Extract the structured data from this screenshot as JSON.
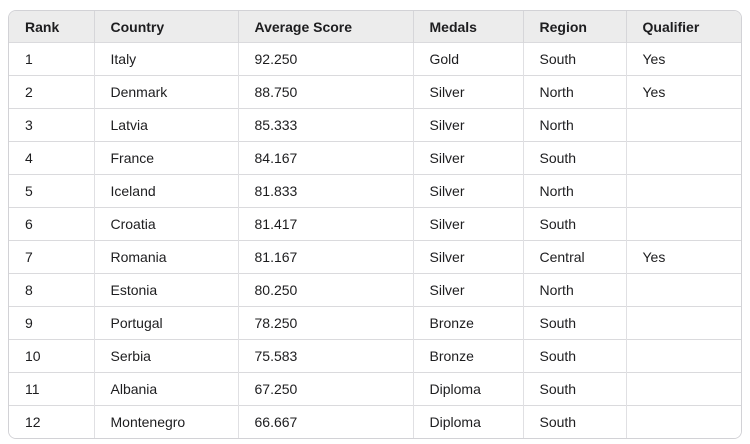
{
  "chart_data": {
    "type": "table",
    "columns": [
      "Rank",
      "Country",
      "Average Score",
      "Medals",
      "Region",
      "Qualifier"
    ],
    "rows": [
      [
        "1",
        "Italy",
        "92.250",
        "Gold",
        "South",
        "Yes"
      ],
      [
        "2",
        "Denmark",
        "88.750",
        "Silver",
        "North",
        "Yes"
      ],
      [
        "3",
        "Latvia",
        "85.333",
        "Silver",
        "North",
        ""
      ],
      [
        "4",
        "France",
        "84.167",
        "Silver",
        "South",
        ""
      ],
      [
        "5",
        "Iceland",
        "81.833",
        "Silver",
        "North",
        ""
      ],
      [
        "6",
        "Croatia",
        "81.417",
        "Silver",
        "South",
        ""
      ],
      [
        "7",
        "Romania",
        "81.167",
        "Silver",
        "Central",
        "Yes"
      ],
      [
        "8",
        "Estonia",
        "80.250",
        "Silver",
        "North",
        ""
      ],
      [
        "9",
        "Portugal",
        "78.250",
        "Bronze",
        "South",
        ""
      ],
      [
        "10",
        "Serbia",
        "75.583",
        "Bronze",
        "South",
        ""
      ],
      [
        "11",
        "Albania",
        "67.250",
        "Diploma",
        "South",
        ""
      ],
      [
        "12",
        "Montenegro",
        "66.667",
        "Diploma",
        "South",
        ""
      ]
    ]
  },
  "colors": {
    "header_background": "#ececec",
    "border": "#d2d2d6",
    "row_divider": "#dadadd",
    "text": "#1d1d1f",
    "page_background": "#ffffff"
  }
}
